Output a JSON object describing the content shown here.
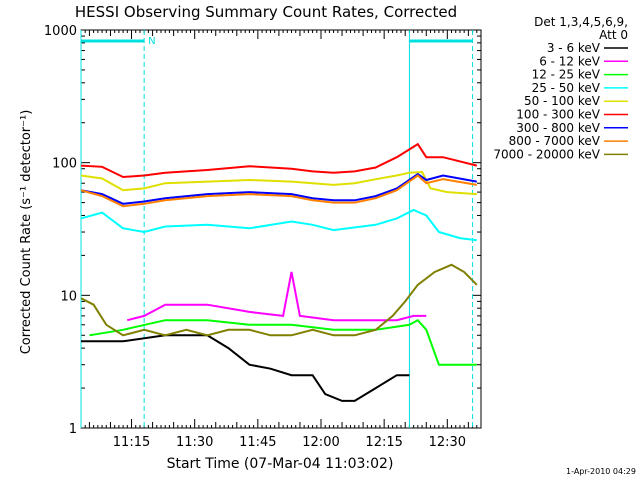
{
  "chart_data": {
    "type": "line",
    "title": "HESSI Observing Summary Count Rates, Corrected",
    "xlabel": "Start Time (07-Mar-04 11:03:02)",
    "ylabel": "Corrected Count Rate (s⁻¹ detector⁻¹)",
    "ylog": true,
    "ylim": [
      1,
      1000
    ],
    "xlim_minutes": [
      0,
      95
    ],
    "xticks": [
      {
        "minute": 12,
        "label": "11:15"
      },
      {
        "minute": 27,
        "label": "11:30"
      },
      {
        "minute": 42,
        "label": "11:45"
      },
      {
        "minute": 57,
        "label": "12:00"
      },
      {
        "minute": 72,
        "label": "12:15"
      },
      {
        "minute": 87,
        "label": "12:30"
      }
    ],
    "yticks": [
      {
        "value": 1,
        "label": "1"
      },
      {
        "value": 10,
        "label": "10"
      },
      {
        "value": 100,
        "label": "100"
      },
      {
        "value": 1000,
        "label": "1000"
      }
    ],
    "legend_header": [
      "Det 1,3,4,5,6,9,",
      "Att 0"
    ],
    "legend_position": "right",
    "footer_date": "1-Apr-2010 04:29",
    "night_marker_label": "N",
    "night_intervals": [
      [
        0,
        15
      ],
      [
        78,
        93
      ]
    ],
    "series": [
      {
        "name": "3 - 6 keV",
        "color": "#000000",
        "points": [
          [
            0,
            4.5
          ],
          [
            10,
            4.5
          ],
          [
            20,
            5
          ],
          [
            30,
            5
          ],
          [
            35,
            4
          ],
          [
            40,
            3
          ],
          [
            45,
            2.8
          ],
          [
            50,
            2.5
          ],
          [
            55,
            2.5
          ],
          [
            58,
            1.8
          ],
          [
            62,
            1.6
          ],
          [
            65,
            1.6
          ],
          [
            70,
            2
          ],
          [
            75,
            2.5
          ],
          [
            78,
            2.5
          ]
        ]
      },
      {
        "name": "6 - 12 keV",
        "color": "#ff00ff",
        "points": [
          [
            11,
            6.5
          ],
          [
            15,
            7
          ],
          [
            20,
            8.5
          ],
          [
            30,
            8.5
          ],
          [
            40,
            7.5
          ],
          [
            48,
            7
          ],
          [
            50,
            15
          ],
          [
            52,
            7
          ],
          [
            60,
            6.5
          ],
          [
            70,
            6.5
          ],
          [
            75,
            6.5
          ],
          [
            79,
            7
          ],
          [
            82,
            7
          ]
        ]
      },
      {
        "name": "12 - 25 keV",
        "color": "#00ff00",
        "points": [
          [
            2,
            5
          ],
          [
            10,
            5.5
          ],
          [
            20,
            6.5
          ],
          [
            30,
            6.5
          ],
          [
            40,
            6
          ],
          [
            50,
            6
          ],
          [
            60,
            5.5
          ],
          [
            70,
            5.5
          ],
          [
            78,
            6
          ],
          [
            80,
            6.5
          ],
          [
            82,
            5.5
          ],
          [
            85,
            3
          ],
          [
            90,
            3
          ],
          [
            94,
            3
          ]
        ]
      },
      {
        "name": "25 - 50 keV",
        "color": "#00ffff",
        "points": [
          [
            0,
            38
          ],
          [
            5,
            42
          ],
          [
            10,
            32
          ],
          [
            15,
            30
          ],
          [
            20,
            33
          ],
          [
            30,
            34
          ],
          [
            40,
            32
          ],
          [
            50,
            36
          ],
          [
            55,
            34
          ],
          [
            60,
            31
          ],
          [
            70,
            34
          ],
          [
            75,
            38
          ],
          [
            79,
            44
          ],
          [
            82,
            40
          ],
          [
            85,
            30
          ],
          [
            90,
            27
          ],
          [
            94,
            26
          ]
        ]
      },
      {
        "name": "50 - 100 keV",
        "color": "#e0e000",
        "points": [
          [
            0,
            80
          ],
          [
            5,
            76
          ],
          [
            10,
            62
          ],
          [
            15,
            64
          ],
          [
            20,
            70
          ],
          [
            30,
            72
          ],
          [
            40,
            74
          ],
          [
            50,
            72
          ],
          [
            55,
            70
          ],
          [
            60,
            68
          ],
          [
            65,
            70
          ],
          [
            70,
            75
          ],
          [
            75,
            80
          ],
          [
            78,
            84
          ],
          [
            81,
            85
          ],
          [
            83,
            64
          ],
          [
            87,
            60
          ],
          [
            94,
            58
          ]
        ]
      },
      {
        "name": "100 - 300 keV",
        "color": "#ff0000",
        "points": [
          [
            0,
            95
          ],
          [
            5,
            93
          ],
          [
            10,
            78
          ],
          [
            15,
            80
          ],
          [
            20,
            84
          ],
          [
            30,
            88
          ],
          [
            40,
            94
          ],
          [
            50,
            90
          ],
          [
            55,
            86
          ],
          [
            60,
            84
          ],
          [
            65,
            86
          ],
          [
            70,
            92
          ],
          [
            75,
            110
          ],
          [
            80,
            138
          ],
          [
            82,
            110
          ],
          [
            86,
            110
          ],
          [
            94,
            95
          ]
        ]
      },
      {
        "name": "300 - 800 keV",
        "color": "#0000ff",
        "points": [
          [
            0,
            62
          ],
          [
            5,
            58
          ],
          [
            10,
            49
          ],
          [
            15,
            51
          ],
          [
            20,
            54
          ],
          [
            30,
            58
          ],
          [
            40,
            60
          ],
          [
            50,
            58
          ],
          [
            55,
            54
          ],
          [
            60,
            52
          ],
          [
            65,
            52
          ],
          [
            70,
            56
          ],
          [
            75,
            64
          ],
          [
            80,
            82
          ],
          [
            82,
            74
          ],
          [
            86,
            80
          ],
          [
            94,
            72
          ]
        ]
      },
      {
        "name": "800 - 7000 keV",
        "color": "#ff8000",
        "points": [
          [
            0,
            62
          ],
          [
            5,
            56
          ],
          [
            10,
            47
          ],
          [
            15,
            49
          ],
          [
            20,
            52
          ],
          [
            30,
            56
          ],
          [
            40,
            58
          ],
          [
            50,
            56
          ],
          [
            55,
            52
          ],
          [
            60,
            50
          ],
          [
            65,
            50
          ],
          [
            70,
            54
          ],
          [
            75,
            62
          ],
          [
            80,
            80
          ],
          [
            82,
            70
          ],
          [
            86,
            75
          ],
          [
            94,
            68
          ]
        ]
      },
      {
        "name": "7000 - 20000 keV",
        "color": "#808000",
        "points": [
          [
            0,
            9.5
          ],
          [
            3,
            8.5
          ],
          [
            6,
            6
          ],
          [
            10,
            5
          ],
          [
            15,
            5.5
          ],
          [
            20,
            5
          ],
          [
            25,
            5.5
          ],
          [
            30,
            5
          ],
          [
            35,
            5.5
          ],
          [
            40,
            5.5
          ],
          [
            45,
            5
          ],
          [
            50,
            5
          ],
          [
            55,
            5.5
          ],
          [
            60,
            5
          ],
          [
            65,
            5
          ],
          [
            70,
            5.5
          ],
          [
            74,
            7
          ],
          [
            77,
            9
          ],
          [
            80,
            12
          ],
          [
            84,
            15
          ],
          [
            88,
            17
          ],
          [
            91,
            15
          ],
          [
            94,
            12
          ]
        ]
      }
    ]
  }
}
